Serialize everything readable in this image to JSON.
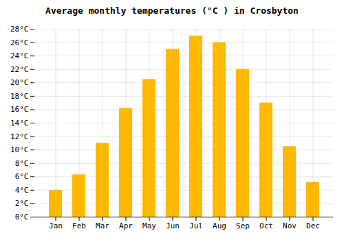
{
  "chart_data": {
    "type": "bar",
    "title": "Average monthly temperatures (°C ) in Crosbyton",
    "categories": [
      "Jan",
      "Feb",
      "Mar",
      "Apr",
      "May",
      "Jun",
      "Jul",
      "Aug",
      "Sep",
      "Oct",
      "Nov",
      "Dec"
    ],
    "values": [
      4.0,
      6.3,
      11.0,
      16.2,
      20.5,
      25.0,
      27.0,
      26.0,
      22.0,
      17.0,
      10.5,
      5.2
    ],
    "color": "#FFB800",
    "ylim": [
      0,
      28
    ],
    "yticks": [
      {
        "value": 0,
        "label": "0°C"
      },
      {
        "value": 2,
        "label": "2°C"
      },
      {
        "value": 4,
        "label": "4°C"
      },
      {
        "value": 6,
        "label": "6°C"
      },
      {
        "value": 8,
        "label": "8°C"
      },
      {
        "value": 10,
        "label": "10°C"
      },
      {
        "value": 12,
        "label": "12°C"
      },
      {
        "value": 14,
        "label": "14°C"
      },
      {
        "value": 16,
        "label": "16°C"
      },
      {
        "value": 18,
        "label": "18°C"
      },
      {
        "value": 20,
        "label": "20°C"
      },
      {
        "value": 22,
        "label": "22°C"
      },
      {
        "value": 24,
        "label": "24°C"
      },
      {
        "value": 26,
        "label": "26°C"
      },
      {
        "value": 28,
        "label": "28°C"
      }
    ],
    "grid": true
  }
}
